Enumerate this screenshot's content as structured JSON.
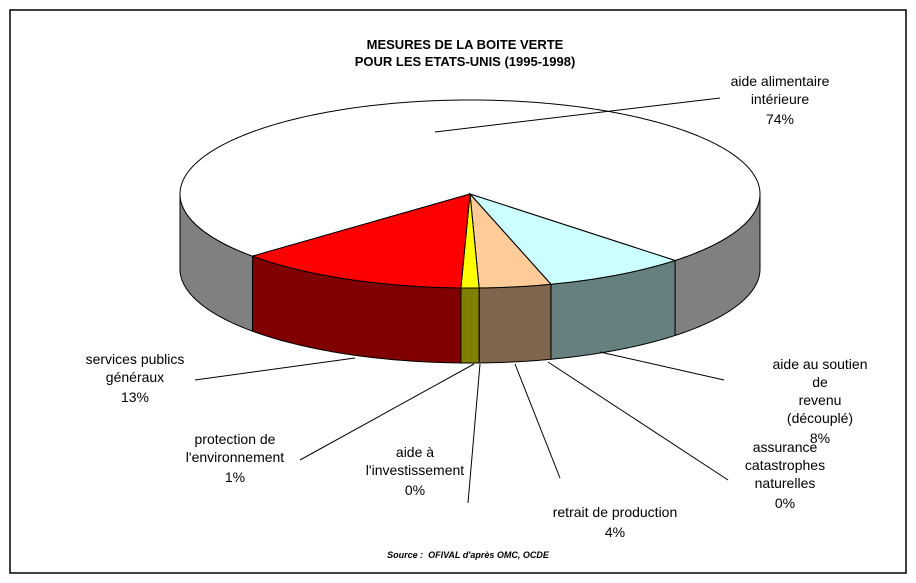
{
  "chart_data": {
    "type": "pie3d",
    "title": "MESURES DE LA BOITE VERTE\nPOUR LES ETATS-UNIS (1995-1998)",
    "categories": [
      "aide alimentaire\nintérieure",
      "aide au soutien de\nrevenu (découplé)",
      "assurance\ncatastrophes\nnaturelles",
      "retrait de production",
      "aide à\nl'investissement",
      "protection de\nl'environnement",
      "services publics\ngénéraux"
    ],
    "values": [
      74,
      8,
      0,
      4,
      0,
      1,
      13
    ],
    "value_labels": [
      "74%",
      "8%",
      "0%",
      "4%",
      "0%",
      "1%",
      "13%"
    ],
    "colors": [
      "#ffffff",
      "#ccffff",
      "#99ccff",
      "#ffcc99",
      "#ff9900",
      "#ffff00",
      "#ff0000"
    ],
    "source": "Source :  OFIVAL d'après OMC, OCDE"
  }
}
